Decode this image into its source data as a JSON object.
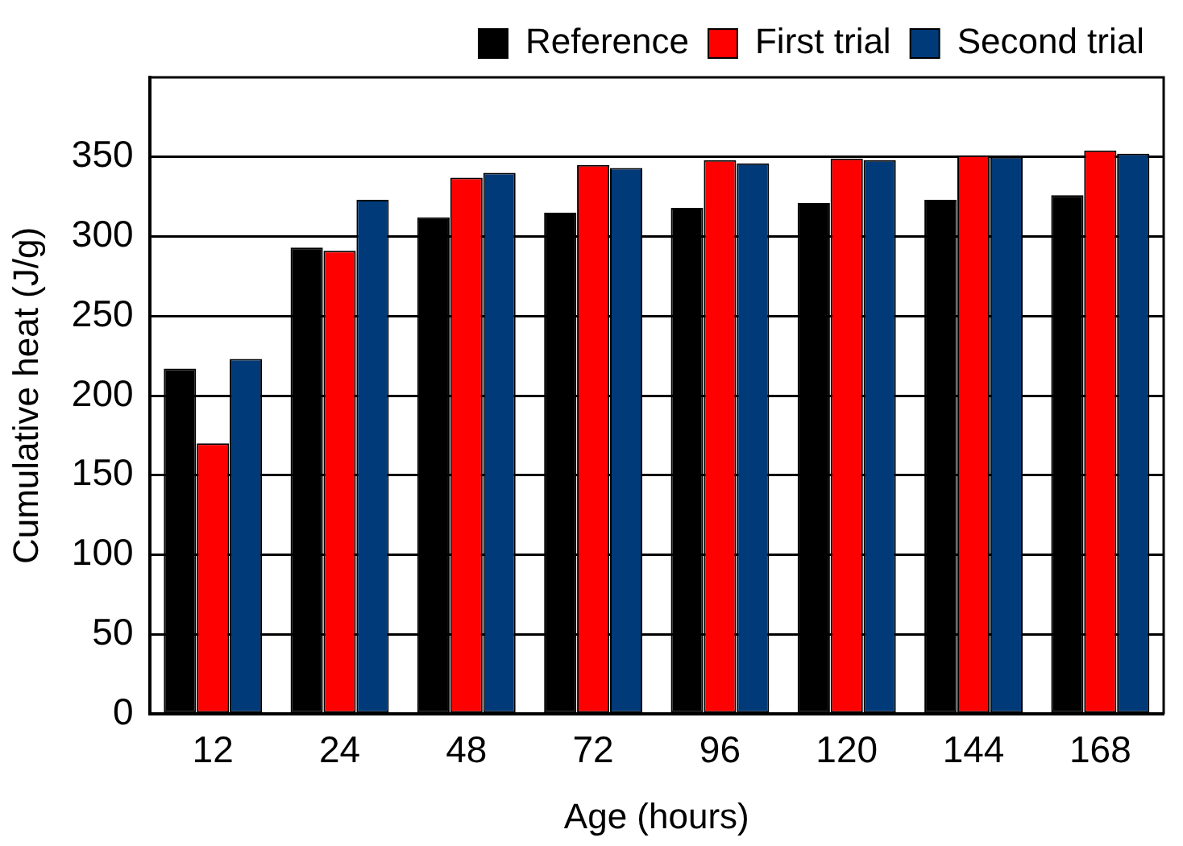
{
  "chart_data": {
    "type": "bar",
    "xlabel": "Age (hours)",
    "ylabel": "Cumulative heat (J/g)",
    "categories": [
      "12",
      "24",
      "48",
      "72",
      "96",
      "120",
      "144",
      "168"
    ],
    "series": [
      {
        "name": "Reference",
        "color": "#000000",
        "values": [
          217,
          293,
          312,
          315,
          318,
          321,
          323,
          326
        ]
      },
      {
        "name": "First trial",
        "color": "#ff0000",
        "values": [
          170,
          291,
          337,
          345,
          348,
          349,
          351,
          354
        ]
      },
      {
        "name": "Second trial",
        "color": "#003a78",
        "values": [
          223,
          323,
          340,
          343,
          346,
          348,
          350,
          352
        ]
      }
    ],
    "ylim": [
      0,
      400
    ],
    "yticks": [
      0,
      50,
      100,
      150,
      200,
      250,
      300,
      350
    ],
    "grid": "y",
    "legend": "top"
  }
}
